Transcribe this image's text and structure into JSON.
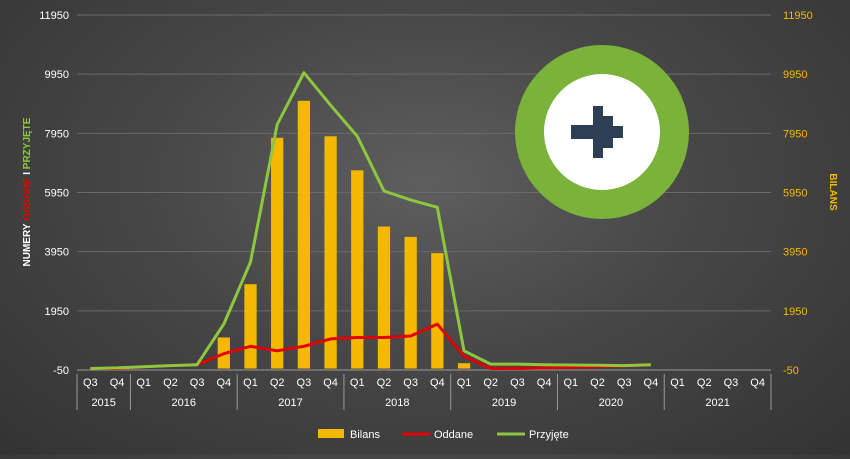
{
  "chart_data": {
    "type": "bar",
    "title": "",
    "left_axis_label": {
      "part1": "NUMERY ",
      "part2": "ODDANE",
      "part3": " I ",
      "part4": "PRZYJĘTE",
      "colors": [
        "#ffffff",
        "#e00000",
        "#ffffff",
        "#8dc63f"
      ]
    },
    "right_axis_label": "BILANS",
    "ylim": [
      -50,
      11950
    ],
    "yticks": [
      -50,
      1950,
      3950,
      5950,
      7950,
      9950,
      11950
    ],
    "left_tick_color": "#ffffff",
    "right_tick_color": "#f5b800",
    "categories": [
      "Q3",
      "Q4",
      "Q1",
      "Q2",
      "Q3",
      "Q4",
      "Q1",
      "Q2",
      "Q3",
      "Q4",
      "Q1",
      "Q2",
      "Q3",
      "Q4",
      "Q1",
      "Q2",
      "Q3",
      "Q4",
      "Q1",
      "Q2",
      "Q3",
      "Q4",
      "Q1",
      "Q2",
      "Q3",
      "Q4"
    ],
    "year_groups": [
      {
        "label": "2015",
        "count": 2
      },
      {
        "label": "2016",
        "count": 4
      },
      {
        "label": "2017",
        "count": 4
      },
      {
        "label": "2018",
        "count": 4
      },
      {
        "label": "2019",
        "count": 4
      },
      {
        "label": "2020",
        "count": 4
      },
      {
        "label": "2021",
        "count": 4
      }
    ],
    "series": [
      {
        "name": "Bilans",
        "kind": "bar",
        "color": "#f5b800",
        "values": [
          0,
          0,
          0,
          0,
          0,
          1050,
          2850,
          7800,
          9050,
          7850,
          6700,
          4800,
          4450,
          3900,
          180,
          0,
          0,
          0,
          0,
          0,
          0,
          0,
          null,
          null,
          null,
          null
        ]
      },
      {
        "name": "Oddane",
        "kind": "line",
        "color": "#e00000",
        "values": [
          0,
          0,
          60,
          100,
          130,
          500,
          750,
          600,
          750,
          1000,
          1050,
          1050,
          1100,
          1500,
          420,
          0,
          0,
          20,
          40,
          60,
          90,
          130,
          null,
          null,
          null,
          null
        ]
      },
      {
        "name": "Przyjęte",
        "kind": "line",
        "color": "#8dc63f",
        "values": [
          0,
          20,
          60,
          100,
          130,
          1500,
          3600,
          8250,
          10000,
          8900,
          7850,
          6000,
          5700,
          5450,
          600,
          150,
          150,
          130,
          120,
          110,
          100,
          130,
          null,
          null,
          null,
          null
        ]
      }
    ],
    "legend_position": "bottom",
    "grid": true
  },
  "badge": {
    "icon": "arrow-right-icon",
    "ring_color": "#7bb23a",
    "inner_color": "#ffffff",
    "arrow_color": "#2e3f55"
  }
}
